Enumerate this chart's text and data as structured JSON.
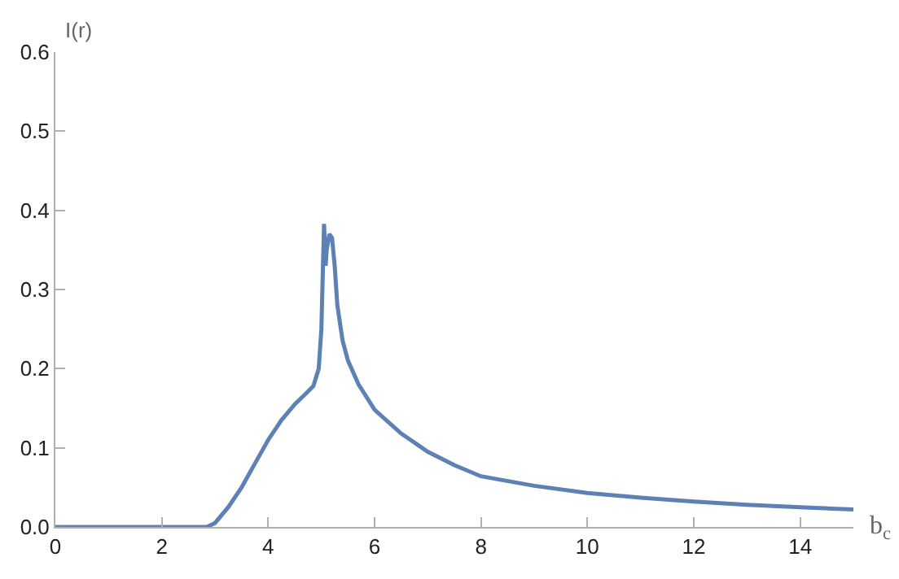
{
  "chart_data": {
    "type": "line",
    "xlabel": "b$_{c}$",
    "ylabel": "I(r)",
    "x": [
      0,
      1,
      2,
      2.85,
      3.0,
      3.25,
      3.5,
      3.75,
      4.0,
      4.25,
      4.5,
      4.7,
      4.85,
      4.95,
      5.0,
      5.05,
      5.08,
      5.1,
      5.15,
      5.2,
      5.25,
      5.3,
      5.4,
      5.5,
      5.7,
      6.0,
      6.5,
      7,
      7.5,
      8,
      9,
      10,
      11,
      12,
      13,
      14,
      15
    ],
    "series": [
      {
        "color": "#5e81b5",
        "values": [
          0,
          0,
          0,
          0,
          0.005,
          0.025,
          0.05,
          0.08,
          0.11,
          0.135,
          0.155,
          0.168,
          0.178,
          0.2,
          0.25,
          0.383,
          0.33,
          0.35,
          0.37,
          0.365,
          0.33,
          0.28,
          0.235,
          0.21,
          0.18,
          0.148,
          0.118,
          0.095,
          0.078,
          0.064,
          0.052,
          0.043,
          0.037,
          0.032,
          0.028,
          0.025,
          0.022
        ]
      }
    ],
    "xlim": [
      0,
      15
    ],
    "ylim": [
      0,
      0.6
    ],
    "xticks": [
      0,
      2,
      4,
      6,
      8,
      10,
      12,
      14
    ],
    "yticks": [
      {
        "value": 0,
        "label": "0.0"
      },
      {
        "value": 0.1,
        "label": "0.1"
      },
      {
        "value": 0.2,
        "label": "0.2"
      },
      {
        "value": 0.3,
        "label": "0.3"
      },
      {
        "value": 0.4,
        "label": "0.4"
      },
      {
        "value": 0.5,
        "label": "0.5"
      },
      {
        "value": 0.6,
        "label": "0.6"
      }
    ],
    "marker": "none",
    "line_style": "solid"
  }
}
